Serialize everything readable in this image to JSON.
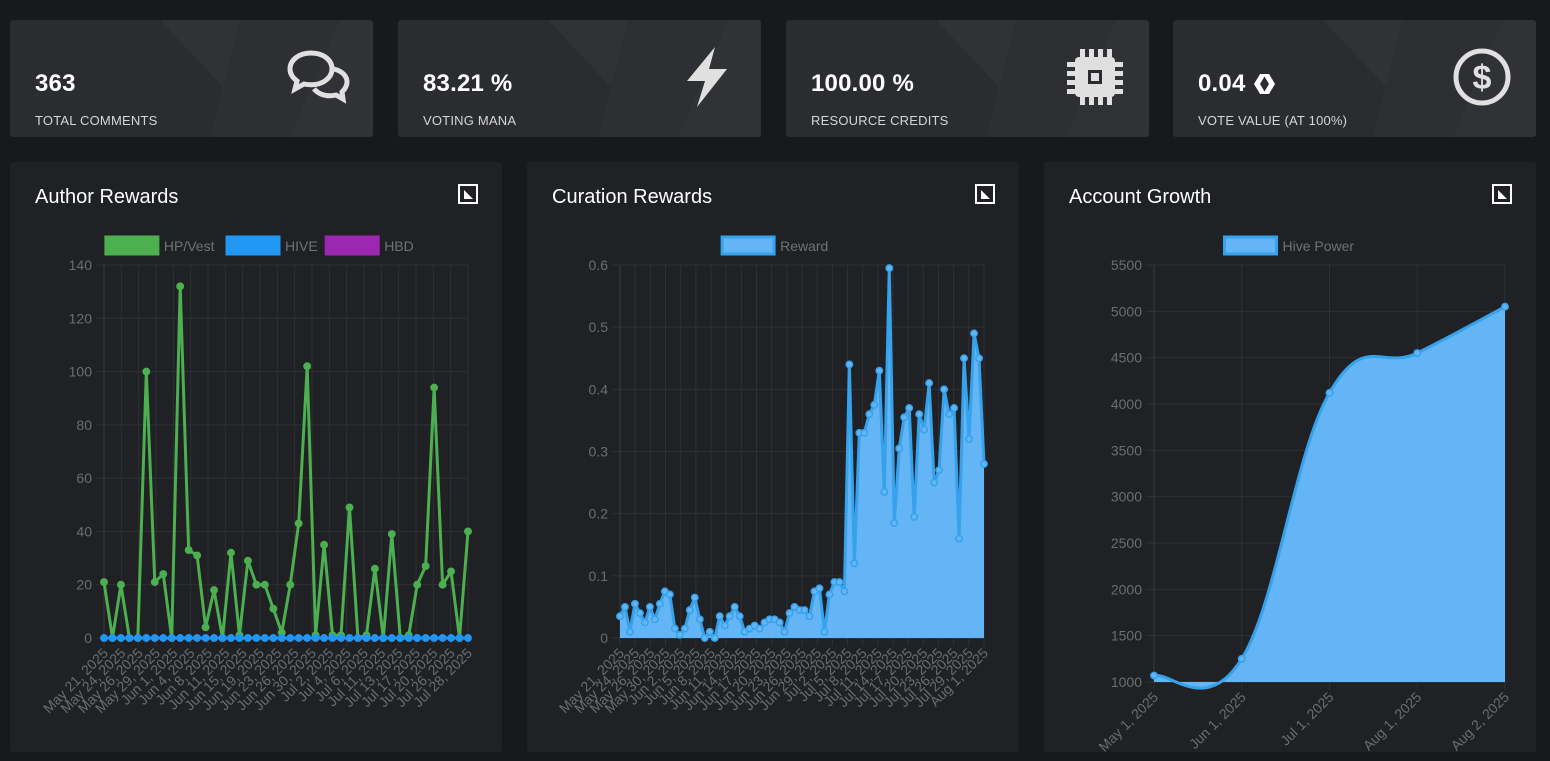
{
  "stats": [
    {
      "value": "363",
      "label": "TOTAL COMMENTS",
      "icon": "comments-icon"
    },
    {
      "value": "83.21 %",
      "label": "VOTING MANA",
      "icon": "lightning-icon"
    },
    {
      "value": "100.00 %",
      "label": "RESOURCE CREDITS",
      "icon": "cpu-chip-icon"
    },
    {
      "value": "0.04",
      "label": "VOTE VALUE (AT 100%)",
      "icon": "dollar-circle-icon",
      "badge_icon": "hive-logo-icon"
    }
  ],
  "cards": {
    "author": {
      "title": "Author Rewards"
    },
    "curation": {
      "title": "Curation Rewards"
    },
    "growth": {
      "title": "Account Growth"
    }
  },
  "chart_data": [
    {
      "type": "line",
      "title": "Author Rewards",
      "series": [
        {
          "name": "HP/Vest",
          "color": "#4caf50",
          "values": [
            21,
            0,
            20,
            0,
            0,
            100,
            21,
            24,
            0,
            132,
            33,
            31,
            4,
            18,
            0,
            32,
            1,
            29,
            20,
            20,
            11,
            2,
            20,
            43,
            102,
            1,
            35,
            1,
            1,
            49,
            0,
            1,
            26,
            0,
            39,
            0,
            1,
            20,
            27,
            94,
            20,
            25,
            0,
            40
          ]
        },
        {
          "name": "HIVE",
          "color": "#2196f3",
          "values": [
            0,
            0,
            0,
            0,
            0,
            0,
            0,
            0,
            0,
            0,
            0,
            0,
            0,
            0,
            0,
            0,
            0,
            0,
            0,
            0,
            0,
            0,
            0,
            0,
            0,
            0,
            0,
            0,
            0,
            0,
            0,
            0,
            0,
            0,
            0,
            0,
            0,
            0,
            0,
            0,
            0,
            0,
            0,
            0
          ]
        },
        {
          "name": "HBD",
          "color": "#9c27b0",
          "values": []
        }
      ],
      "x_labels": [
        "May 21, 2025",
        "May 24, 2025",
        "May 26, 2025",
        "May 29, 2025",
        "Jun 1, 2025",
        "Jun 4, 2025",
        "Jun 8, 2025",
        "Jun 11, 2025",
        "Jun 15, 2025",
        "Jun 19, 2025",
        "Jun 23, 2025",
        "Jun 26, 2025",
        "Jun 30, 2025",
        "Jul 2, 2025",
        "Jul 4, 2025",
        "Jul 6, 2025",
        "Jul 11, 2025",
        "Jul 13, 2025",
        "Jul 17, 2025",
        "Jul 20, 2025",
        "Jul 26, 2025",
        "Jul 28, 2025"
      ],
      "ylim": [
        0,
        140
      ],
      "y_ticks": [
        0,
        20,
        40,
        60,
        80,
        100,
        120,
        140
      ],
      "grid": true,
      "legend": "top"
    },
    {
      "type": "area",
      "title": "Curation Rewards",
      "series": [
        {
          "name": "Reward",
          "color": "#36a2eb",
          "fill": "#64b5f6",
          "values": [
            0.035,
            0.05,
            0.01,
            0.055,
            0.04,
            0.025,
            0.05,
            0.03,
            0.055,
            0.075,
            0.07,
            0.015,
            0.005,
            0.015,
            0.045,
            0.065,
            0.03,
            0.0,
            0.01,
            0.0,
            0.035,
            0.02,
            0.035,
            0.05,
            0.035,
            0.01,
            0.015,
            0.02,
            0.015,
            0.025,
            0.03,
            0.03,
            0.025,
            0.01,
            0.04,
            0.05,
            0.045,
            0.045,
            0.035,
            0.075,
            0.08,
            0.01,
            0.07,
            0.09,
            0.09,
            0.075,
            0.44,
            0.12,
            0.33,
            0.33,
            0.36,
            0.375,
            0.43,
            0.235,
            0.595,
            0.185,
            0.305,
            0.355,
            0.37,
            0.195,
            0.36,
            0.335,
            0.41,
            0.25,
            0.27,
            0.4,
            0.36,
            0.37,
            0.16,
            0.45,
            0.32,
            0.49,
            0.45,
            0.28
          ]
        }
      ],
      "x_labels": [
        "May 21, 2025",
        "May 24, 2025",
        "May 26, 2025",
        "May 30, 2025",
        "Jun 2, 2025",
        "Jun 5, 2025",
        "Jun 8, 2025",
        "Jun 11, 2025",
        "Jun 14, 2025",
        "Jun 17, 2025",
        "Jun 20, 2025",
        "Jun 23, 2025",
        "Jun 26, 2025",
        "Jun 29, 2025",
        "Jul 2, 2025",
        "Jul 5, 2025",
        "Jul 8, 2025",
        "Jul 11, 2025",
        "Jul 14, 2025",
        "Jul 17, 2025",
        "Jul 20, 2025",
        "Jul 23, 2025",
        "Jul 26, 2025",
        "Jul 29, 2025",
        "Aug 1, 2025"
      ],
      "ylim": [
        0,
        0.6
      ],
      "y_ticks": [
        "0",
        "0.1",
        "0.2",
        "0.3",
        "0.4",
        "0.5",
        "0.6"
      ],
      "grid": true,
      "legend": "top"
    },
    {
      "type": "area",
      "title": "Account Growth",
      "series": [
        {
          "name": "Hive Power",
          "color": "#36a2eb",
          "fill": "#64b5f6",
          "values": [
            1070,
            1250,
            4120,
            4550,
            5050
          ]
        }
      ],
      "categories": [
        "May 1, 2025",
        "Jun 1, 2025",
        "Jul 1, 2025",
        "Aug 1, 2025",
        "Aug 2, 2025"
      ],
      "ylim": [
        1000,
        5500
      ],
      "y_ticks": [
        1000,
        1500,
        2000,
        2500,
        3000,
        3500,
        4000,
        4500,
        5000,
        5500
      ],
      "grid": true,
      "legend": "top"
    }
  ]
}
